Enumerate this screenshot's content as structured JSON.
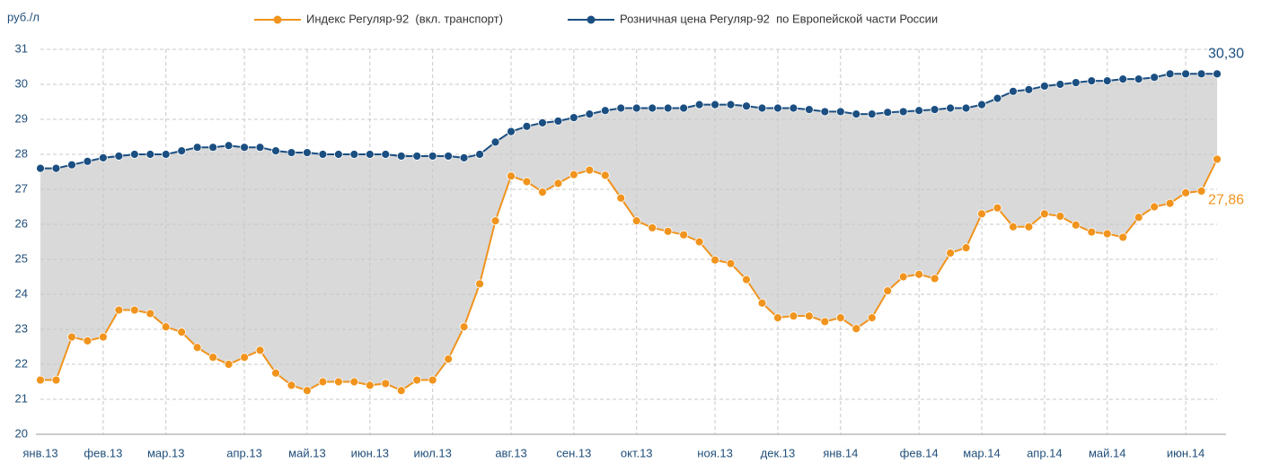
{
  "chart_data": {
    "type": "line",
    "y_label": "руб./л",
    "categories": [
      "янв.13",
      null,
      null,
      null,
      "фев.13",
      null,
      null,
      null,
      "мар.13",
      null,
      null,
      null,
      null,
      "апр.13",
      null,
      null,
      null,
      "май.13",
      null,
      null,
      null,
      "июн.13",
      null,
      null,
      null,
      "июл.13",
      null,
      null,
      null,
      null,
      "авг.13",
      null,
      null,
      null,
      "сен.13",
      null,
      null,
      null,
      "окт.13",
      null,
      null,
      null,
      null,
      "ноя.13",
      null,
      null,
      null,
      "дек.13",
      null,
      null,
      null,
      "янв.14",
      null,
      null,
      null,
      null,
      "фев.14",
      null,
      null,
      null,
      "мар.14",
      null,
      null,
      null,
      "апр.14",
      null,
      null,
      null,
      "май.14",
      null,
      null,
      null,
      null,
      "июн.14",
      null,
      null
    ],
    "series": [
      {
        "name": "Индекс Регуляр-92  (вкл. транспорт)",
        "color": "#f0941e",
        "values": [
          21.55,
          21.55,
          22.78,
          22.67,
          22.78,
          23.55,
          23.55,
          23.45,
          23.07,
          22.92,
          22.48,
          22.2,
          22.0,
          22.2,
          22.4,
          21.75,
          21.4,
          21.25,
          21.5,
          21.5,
          21.5,
          21.4,
          21.45,
          21.25,
          21.55,
          21.55,
          22.15,
          23.07,
          24.3,
          26.1,
          27.38,
          27.22,
          26.92,
          27.17,
          27.42,
          27.55,
          27.4,
          26.75,
          26.1,
          25.9,
          25.8,
          25.7,
          25.5,
          24.98,
          24.88,
          24.42,
          23.75,
          23.33,
          23.38,
          23.38,
          23.22,
          23.33,
          23.02,
          23.33,
          24.1,
          24.5,
          24.57,
          24.45,
          25.18,
          25.33,
          26.3,
          26.47,
          25.93,
          25.93,
          26.3,
          26.23,
          25.98,
          25.78,
          25.73,
          25.63,
          26.2,
          26.5,
          26.6,
          26.9,
          26.95,
          27.86
        ],
        "value_labels": [
          null,
          null,
          null,
          null,
          null,
          null,
          null,
          null,
          null,
          null,
          null,
          null,
          null,
          null,
          null,
          null,
          null,
          null,
          null,
          null,
          null,
          null,
          null,
          null,
          null,
          null,
          null,
          null,
          null,
          null,
          null,
          null,
          null,
          null,
          null,
          null,
          null,
          null,
          null,
          null,
          null,
          null,
          null,
          null,
          null,
          null,
          null,
          null,
          null,
          null,
          null,
          null,
          null,
          null,
          null,
          null,
          null,
          null,
          null,
          null,
          null,
          null,
          null,
          null,
          null,
          null,
          null,
          null,
          null,
          null,
          null,
          null,
          null,
          null,
          null,
          "27,86"
        ]
      },
      {
        "name": "Розничная цена Регуляр-92  по Европейской части России",
        "color": "#1b4f82",
        "values": [
          27.6,
          27.6,
          27.7,
          27.8,
          27.9,
          27.95,
          28.0,
          28.0,
          28.0,
          28.1,
          28.2,
          28.2,
          28.25,
          28.2,
          28.2,
          28.1,
          28.05,
          28.05,
          28.0,
          28.0,
          28.0,
          28.0,
          28.0,
          27.95,
          27.95,
          27.95,
          27.95,
          27.9,
          28.0,
          28.35,
          28.65,
          28.8,
          28.9,
          28.95,
          29.05,
          29.15,
          29.25,
          29.32,
          29.32,
          29.32,
          29.32,
          29.32,
          29.42,
          29.42,
          29.42,
          29.38,
          29.32,
          29.32,
          29.32,
          29.28,
          29.22,
          29.22,
          29.15,
          29.15,
          29.2,
          29.22,
          29.25,
          29.28,
          29.32,
          29.32,
          29.42,
          29.6,
          29.8,
          29.85,
          29.95,
          30.0,
          30.05,
          30.1,
          30.1,
          30.15,
          30.15,
          30.2,
          30.3,
          30.3,
          30.3,
          30.3
        ],
        "value_labels": [
          null,
          null,
          null,
          null,
          null,
          null,
          null,
          null,
          null,
          null,
          null,
          null,
          null,
          null,
          null,
          null,
          null,
          null,
          null,
          null,
          null,
          null,
          null,
          null,
          null,
          null,
          null,
          null,
          null,
          null,
          null,
          null,
          null,
          null,
          null,
          null,
          null,
          null,
          null,
          null,
          null,
          null,
          null,
          null,
          null,
          null,
          null,
          null,
          null,
          null,
          null,
          null,
          null,
          null,
          null,
          null,
          null,
          null,
          null,
          null,
          null,
          null,
          null,
          null,
          null,
          null,
          null,
          null,
          null,
          null,
          null,
          null,
          null,
          null,
          null,
          "30,30"
        ]
      }
    ],
    "fill_between": "#d9d9d9",
    "ylim": [
      20,
      31
    ],
    "yticks": [
      20,
      21,
      22,
      23,
      24,
      25,
      26,
      27,
      28,
      29,
      30,
      31
    ],
    "grid": true,
    "legend": "top"
  }
}
